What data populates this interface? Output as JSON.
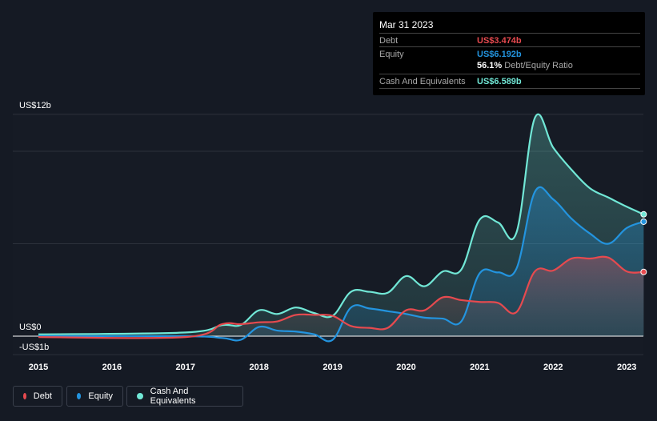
{
  "tooltip": {
    "date": "Mar 31 2023",
    "debt_label": "Debt",
    "debt_value": "US$3.474b",
    "equity_label": "Equity",
    "equity_value": "US$6.192b",
    "ratio_value": "56.1%",
    "ratio_label": "Debt/Equity Ratio",
    "cash_label": "Cash And Equivalents",
    "cash_value": "US$6.589b"
  },
  "legend": [
    {
      "label": "Debt",
      "color": "#e64a4f"
    },
    {
      "label": "Equity",
      "color": "#2394df"
    },
    {
      "label": "Cash And Equivalents",
      "color": "#71e7d6"
    }
  ],
  "chart_data": {
    "type": "area",
    "y_tick_labels": [
      "US$12b",
      "US$0",
      "-US$1b"
    ],
    "x_tick_labels": [
      "2015",
      "2016",
      "2017",
      "2018",
      "2019",
      "2020",
      "2021",
      "2022",
      "2023"
    ],
    "ylim": [
      -1,
      12
    ],
    "xlim": [
      2014.75,
      2023.23
    ],
    "grid": true,
    "legend_position": "bottom-left",
    "x": [
      2015,
      2017,
      2017.5,
      2017.75,
      2018,
      2018.25,
      2018.5,
      2018.75,
      2019,
      2019.25,
      2019.5,
      2019.75,
      2020,
      2020.25,
      2020.5,
      2020.75,
      2021,
      2021.25,
      2021.5,
      2021.75,
      2022,
      2022.25,
      2022.5,
      2022.75,
      2023,
      2023.23
    ],
    "series": [
      {
        "name": "Cash And Equivalents",
        "color": "#71e7d6",
        "values": [
          0.1,
          0.2,
          0.6,
          0.6,
          1.4,
          1.2,
          1.55,
          1.25,
          1.1,
          2.4,
          2.4,
          2.35,
          3.25,
          2.7,
          3.5,
          3.6,
          6.3,
          6.15,
          5.6,
          11.8,
          10.2,
          9.0,
          8.0,
          7.5,
          7.0,
          6.589
        ]
      },
      {
        "name": "Equity",
        "color": "#2394df",
        "values": [
          0.0,
          0.0,
          -0.1,
          -0.2,
          0.5,
          0.3,
          0.25,
          0.1,
          -0.2,
          1.55,
          1.5,
          1.35,
          1.2,
          1.0,
          0.95,
          0.8,
          3.4,
          3.45,
          3.65,
          7.8,
          7.4,
          6.35,
          5.55,
          5.0,
          5.85,
          6.192
        ]
      },
      {
        "name": "Debt",
        "color": "#e64a4f",
        "values": [
          -0.05,
          -0.05,
          0.65,
          0.65,
          0.75,
          0.8,
          1.15,
          1.15,
          1.1,
          0.55,
          0.45,
          0.45,
          1.4,
          1.4,
          2.1,
          1.95,
          1.85,
          1.8,
          1.3,
          3.5,
          3.55,
          4.2,
          4.2,
          4.25,
          3.5,
          3.474
        ]
      }
    ]
  }
}
